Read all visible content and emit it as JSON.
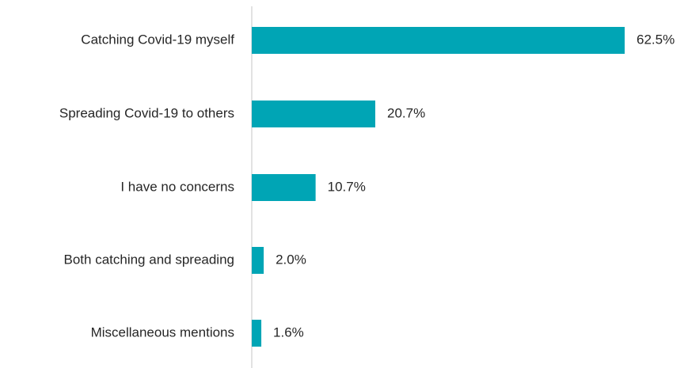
{
  "chart_data": {
    "type": "bar",
    "orientation": "horizontal",
    "categories": [
      "Catching Covid-19 myself",
      "Spreading Covid-19 to others",
      "I have no concerns",
      "Both catching and spreading",
      "Miscellaneous mentions"
    ],
    "values": [
      62.5,
      20.7,
      10.7,
      2.0,
      1.6
    ],
    "value_labels": [
      "62.5%",
      "20.7%",
      "10.7%",
      "2.0%",
      "1.6%"
    ],
    "xlim": [
      0,
      62.5
    ],
    "grid": false,
    "legend": "none",
    "bar_color": "#00A5B5",
    "axis_color": "#D9D9D9"
  }
}
